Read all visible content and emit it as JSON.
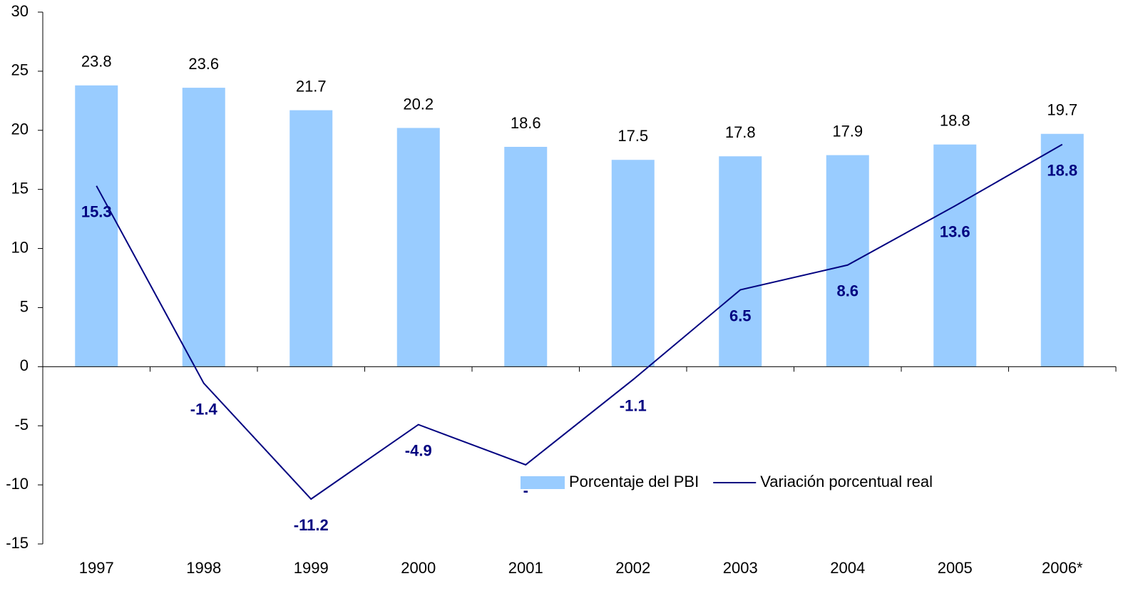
{
  "chart_data": {
    "type": "bar_line",
    "categories": [
      "1997",
      "1998",
      "1999",
      "2000",
      "2001",
      "2002",
      "2003",
      "2004",
      "2005",
      "2006*"
    ],
    "series": [
      {
        "name": "Porcentaje del PBI",
        "type": "bar",
        "color": "#99ccff",
        "values": [
          23.8,
          23.6,
          21.7,
          20.2,
          18.6,
          17.5,
          17.8,
          17.9,
          18.8,
          19.7
        ]
      },
      {
        "name": "Variación porcentual real",
        "type": "line",
        "color": "#000080",
        "values": [
          15.3,
          -1.4,
          -11.2,
          -4.9,
          -8.3,
          -1.1,
          6.5,
          8.6,
          13.6,
          18.8
        ],
        "value_labels": [
          "15.3",
          "-1.4",
          "-11.2",
          "-4.9",
          "-",
          "-1.1",
          "6.5",
          "8.6",
          "13.6",
          "18.8"
        ]
      }
    ],
    "ylim": [
      -15,
      30
    ],
    "yticks": [
      -15,
      -10,
      -5,
      0,
      5,
      10,
      15,
      20,
      25,
      30
    ],
    "grid": false
  }
}
